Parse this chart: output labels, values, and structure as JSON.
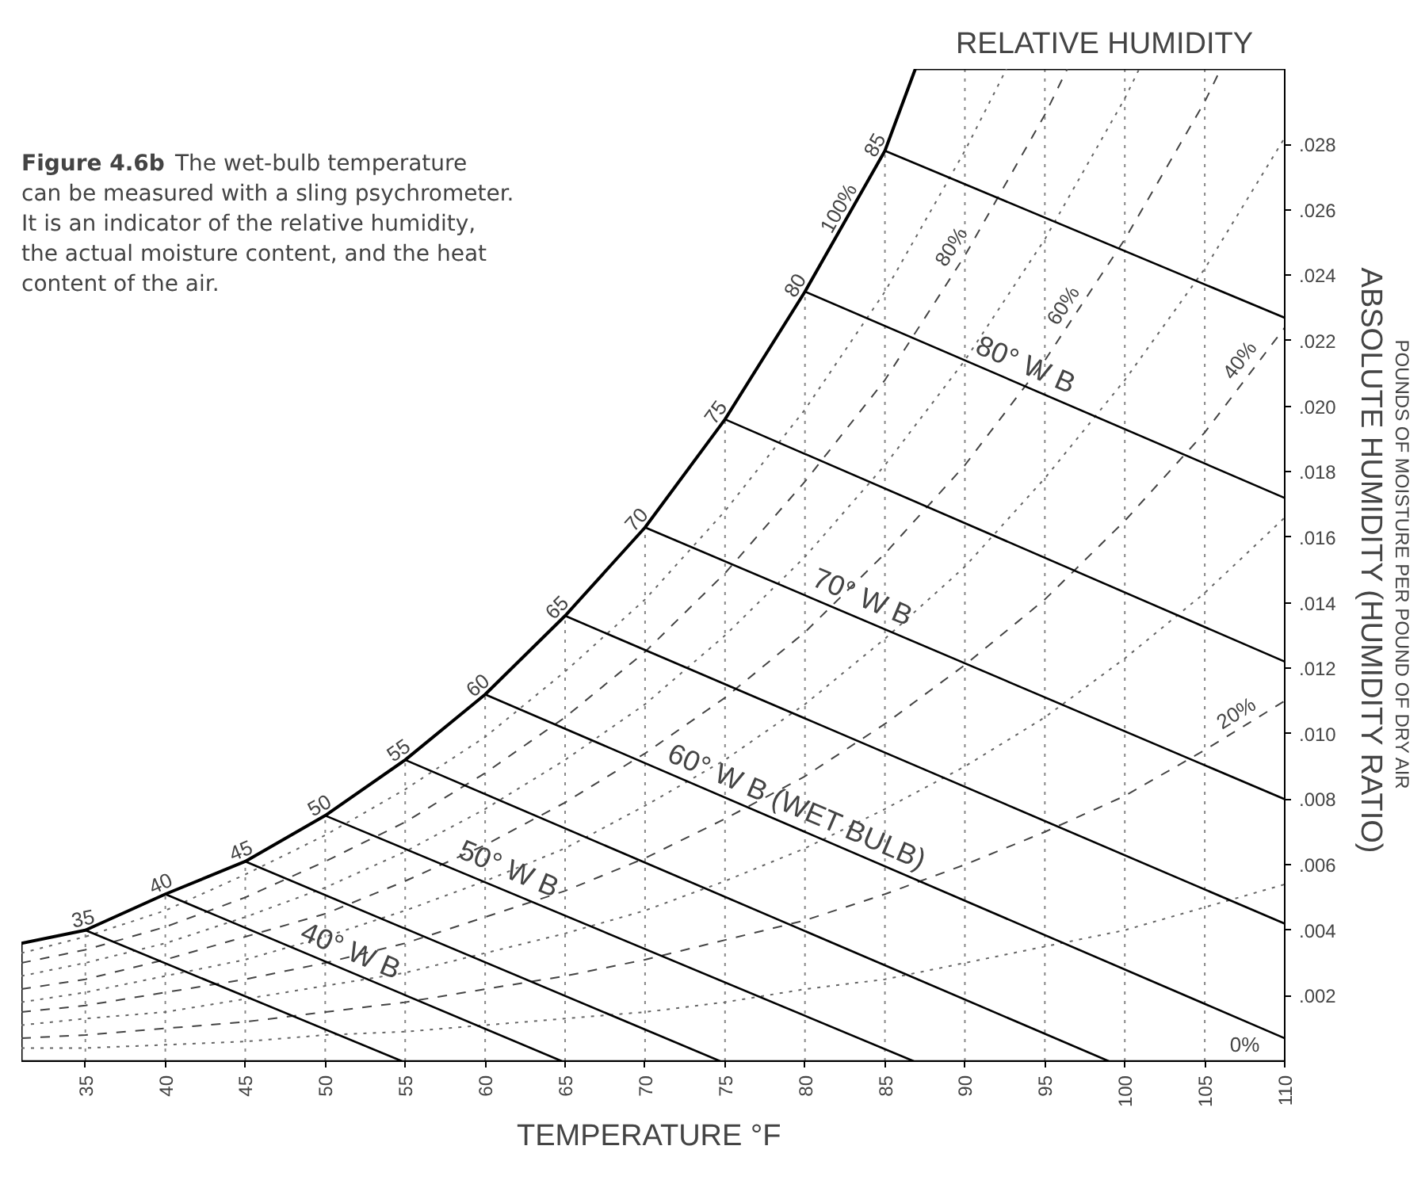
{
  "chart_data": {
    "type": "line",
    "title": "RELATIVE HUMIDITY",
    "xlabel": "TEMPERATURE  °F",
    "ylabel": "ABSOLUTE HUMIDITY  (HUMIDITY RATIO)",
    "xlim": [
      31,
      110
    ],
    "ylim": [
      0,
      0.0303
    ],
    "xticks": [
      35,
      40,
      45,
      50,
      55,
      60,
      65,
      70,
      75,
      80,
      85,
      90,
      95,
      100,
      105,
      110
    ],
    "yticks": [
      {
        "value": 0.002,
        "label": ".002"
      },
      {
        "value": 0.004,
        "label": ".004"
      },
      {
        "value": 0.006,
        "label": ".006"
      },
      {
        "value": 0.008,
        "label": ".008"
      },
      {
        "value": 0.01,
        "label": ".010"
      },
      {
        "value": 0.012,
        "label": ".012"
      },
      {
        "value": 0.014,
        "label": ".014"
      },
      {
        "value": 0.016,
        "label": ".016"
      },
      {
        "value": 0.018,
        "label": ".018"
      },
      {
        "value": 0.02,
        "label": ".020"
      },
      {
        "value": 0.022,
        "label": ".022"
      },
      {
        "value": 0.024,
        "label": ".024"
      },
      {
        "value": 0.026,
        "label": ".026"
      },
      {
        "value": 0.028,
        "label": ".028"
      }
    ],
    "grid": "x",
    "series": [
      {
        "color": "#000000",
        "line_style": "solid",
        "x": [
          31,
          35,
          40,
          45,
          50,
          55,
          60,
          65,
          70,
          75,
          80,
          85,
          86.9
        ],
        "values": [
          0.0036,
          0.004,
          0.0051,
          0.0061,
          0.0075,
          0.0092,
          0.0112,
          0.0136,
          0.0163,
          0.0196,
          0.0235,
          0.0278,
          0.0303
        ]
      },
      {
        "color": "#000000",
        "line_style": "solid",
        "x": [
          31,
          110
        ],
        "values": [
          0,
          0
        ]
      },
      {
        "color": "#666666",
        "line_style": "dotted",
        "x": [
          31,
          35,
          40,
          45,
          50,
          55,
          60,
          65,
          70,
          75,
          80,
          85,
          90,
          95,
          100,
          105,
          110
        ],
        "values": [
          0.0004,
          0.0004,
          0.0005,
          0.0006,
          0.0008,
          0.0009,
          0.0011,
          0.0013,
          0.0015,
          0.0018,
          0.0022,
          0.0025,
          0.003,
          0.0035,
          0.004,
          0.0047,
          0.0054
        ]
      },
      {
        "color": "#444444",
        "line_style": "dashed",
        "x": [
          31,
          35,
          40,
          45,
          50,
          55,
          60,
          65,
          70,
          75,
          80,
          85,
          90,
          95,
          100,
          105,
          110
        ],
        "values": [
          0.0007,
          0.0008,
          0.001,
          0.0012,
          0.0015,
          0.0018,
          0.0022,
          0.0026,
          0.0031,
          0.0037,
          0.0043,
          0.0051,
          0.006,
          0.007,
          0.0081,
          0.0095,
          0.011
        ]
      },
      {
        "color": "#666666",
        "line_style": "dotted",
        "x": [
          31,
          35,
          40,
          45,
          50,
          55,
          60,
          65,
          70,
          75,
          80,
          85,
          90,
          95,
          100,
          105,
          110
        ],
        "values": [
          0.0011,
          0.0013,
          0.0015,
          0.0019,
          0.0023,
          0.0027,
          0.0033,
          0.0039,
          0.0046,
          0.0055,
          0.0065,
          0.0077,
          0.009,
          0.0105,
          0.0123,
          0.0143,
          0.0166
        ]
      },
      {
        "color": "#444444",
        "line_style": "dashed",
        "x": [
          31,
          35,
          40,
          45,
          50,
          55,
          60,
          65,
          70,
          75,
          80,
          85,
          90,
          95,
          100,
          105,
          110
        ],
        "values": [
          0.0015,
          0.0017,
          0.0021,
          0.0025,
          0.003,
          0.0036,
          0.0044,
          0.0052,
          0.0062,
          0.0074,
          0.0087,
          0.0103,
          0.0121,
          0.0141,
          0.0165,
          0.0192,
          0.0224
        ]
      },
      {
        "color": "#666666",
        "line_style": "dotted",
        "x": [
          31,
          35,
          40,
          45,
          50,
          55,
          60,
          65,
          70,
          75,
          80,
          85,
          90,
          95,
          100,
          105,
          110
        ],
        "values": [
          0.0018,
          0.0021,
          0.0026,
          0.0031,
          0.0038,
          0.0046,
          0.0055,
          0.0065,
          0.0078,
          0.0092,
          0.0109,
          0.0129,
          0.0151,
          0.0178,
          0.0208,
          0.0242,
          0.0282
        ]
      },
      {
        "color": "#444444",
        "line_style": "dashed",
        "x": [
          31,
          35,
          40,
          45,
          50,
          55,
          60,
          65,
          70,
          75,
          80,
          85,
          90,
          95,
          100,
          105,
          106.0
        ],
        "values": [
          0.0022,
          0.0025,
          0.0031,
          0.0038,
          0.0045,
          0.0055,
          0.0066,
          0.0079,
          0.0094,
          0.0111,
          0.0131,
          0.0155,
          0.0182,
          0.0214,
          0.0251,
          0.0293,
          0.0303
        ]
      },
      {
        "color": "#666666",
        "line_style": "dotted",
        "x": [
          31,
          35,
          40,
          45,
          50,
          55,
          60,
          65,
          70,
          75,
          80,
          85,
          90,
          95,
          100,
          100.9
        ],
        "values": [
          0.0026,
          0.003,
          0.0036,
          0.0044,
          0.0053,
          0.0064,
          0.0077,
          0.0092,
          0.0109,
          0.013,
          0.0154,
          0.0182,
          0.0214,
          0.0251,
          0.0294,
          0.0303
        ]
      },
      {
        "color": "#444444",
        "line_style": "dashed",
        "x": [
          31,
          35,
          40,
          45,
          50,
          55,
          60,
          65,
          70,
          75,
          80,
          85,
          90,
          95,
          96.4
        ],
        "values": [
          0.003,
          0.0034,
          0.0041,
          0.005,
          0.0061,
          0.0073,
          0.0088,
          0.0105,
          0.0125,
          0.0149,
          0.0177,
          0.0208,
          0.0246,
          0.0289,
          0.0303
        ]
      },
      {
        "color": "#666666",
        "line_style": "dotted",
        "x": [
          31,
          35,
          40,
          45,
          50,
          55,
          60,
          65,
          70,
          75,
          80,
          85,
          90,
          92.6
        ],
        "values": [
          0.0033,
          0.0038,
          0.0046,
          0.0057,
          0.0069,
          0.0083,
          0.0099,
          0.0119,
          0.0141,
          0.0168,
          0.0199,
          0.0235,
          0.0278,
          0.0303
        ]
      },
      {
        "color": "#000000",
        "line_style": "solid",
        "x": [
          35,
          54.8
        ],
        "values": [
          0.004,
          0
        ]
      },
      {
        "color": "#000000",
        "line_style": "solid",
        "x": [
          40,
          64.8
        ],
        "values": [
          0.0051,
          0
        ]
      },
      {
        "color": "#000000",
        "line_style": "solid",
        "x": [
          45,
          74.7
        ],
        "values": [
          0.0061,
          0
        ]
      },
      {
        "color": "#000000",
        "line_style": "solid",
        "x": [
          50,
          86.8
        ],
        "values": [
          0.0075,
          0
        ]
      },
      {
        "color": "#000000",
        "line_style": "solid",
        "x": [
          55,
          99
        ],
        "values": [
          0.0092,
          0
        ]
      },
      {
        "color": "#000000",
        "line_style": "solid",
        "x": [
          60,
          110
        ],
        "values": [
          0.0112,
          0.0007
        ]
      },
      {
        "color": "#000000",
        "line_style": "solid",
        "x": [
          65,
          110
        ],
        "values": [
          0.0136,
          0.0042
        ]
      },
      {
        "color": "#000000",
        "line_style": "solid",
        "x": [
          70,
          110
        ],
        "values": [
          0.0163,
          0.008
        ]
      },
      {
        "color": "#000000",
        "line_style": "solid",
        "x": [
          75,
          110
        ],
        "values": [
          0.0196,
          0.0122
        ]
      },
      {
        "color": "#000000",
        "line_style": "solid",
        "x": [
          80,
          110
        ],
        "values": [
          0.0235,
          0.0172
        ]
      },
      {
        "color": "#000000",
        "line_style": "solid",
        "x": [
          85,
          110
        ],
        "values": [
          0.0278,
          0.0227
        ]
      }
    ],
    "annotations": [
      "Figure 4.6b",
      "The wet-bulb temperature can be measured with a sling psychrometer. It is an indicator of the relative humidity, the actual moisture content, and the heat content of the air.",
      "POUNDS OF MOISTURE PER POUND OF DRY AIR",
      {
        "text": "35",
        "x": 35,
        "y": 0.004
      },
      {
        "text": "40",
        "x": 40,
        "y": 0.0051
      },
      {
        "text": "45",
        "x": 45,
        "y": 0.0061
      },
      {
        "text": "50",
        "x": 50,
        "y": 0.0075
      },
      {
        "text": "55",
        "x": 55,
        "y": 0.0092
      },
      {
        "text": "60",
        "x": 60,
        "y": 0.0112
      },
      {
        "text": "65",
        "x": 65,
        "y": 0.0136
      },
      {
        "text": "70",
        "x": 70,
        "y": 0.0163
      },
      {
        "text": "75",
        "x": 75,
        "y": 0.0196
      },
      {
        "text": "80",
        "x": 80,
        "y": 0.0235
      },
      {
        "text": "85",
        "x": 85,
        "y": 0.0278
      },
      {
        "text": "100%",
        "x": 83.0,
        "y": 0.0258
      },
      {
        "text": "80%",
        "x": 90,
        "y": 0.0246
      },
      {
        "text": "60%",
        "x": 97,
        "y": 0.0228
      },
      {
        "text": "40%",
        "x": 108,
        "y": 0.0211
      },
      {
        "text": "20%",
        "x": 107.5,
        "y": 0.0102
      },
      {
        "text": "0%",
        "x": 107.5,
        "y": 0
      },
      {
        "text": "40° W B",
        "x": 51.1,
        "y": 0.0028
      },
      {
        "text": "50° W B",
        "x": 61,
        "y": 0.0053
      },
      {
        "text": "60° W B (WET BULB)",
        "x": 79,
        "y": 0.0072
      },
      {
        "text": "70° W B",
        "x": 83.1,
        "y": 0.0136
      },
      {
        "text": "80° W B",
        "x": 93.3,
        "y": 0.0207
      }
    ]
  }
}
